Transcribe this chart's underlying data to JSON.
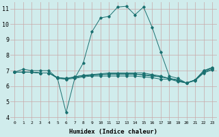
{
  "xlabel": "Humidex (Indice chaleur)",
  "xlim": [
    -0.5,
    23.5
  ],
  "ylim": [
    3.8,
    11.4
  ],
  "yticks": [
    4,
    5,
    6,
    7,
    8,
    9,
    10,
    11
  ],
  "xticks": [
    0,
    1,
    2,
    3,
    4,
    5,
    6,
    7,
    8,
    9,
    10,
    11,
    12,
    13,
    14,
    15,
    16,
    17,
    18,
    19,
    20,
    21,
    22,
    23
  ],
  "bg_color": "#d0ecec",
  "grid_color_v": "#c8a8a8",
  "grid_color_h": "#c8a8a8",
  "line_color": "#1a7070",
  "lines": [
    {
      "x": [
        0,
        1,
        2,
        3,
        4,
        5,
        6,
        7,
        8,
        9,
        10,
        11,
        12,
        13,
        14,
        15,
        16,
        17,
        18,
        19,
        20,
        21,
        22,
        23
      ],
      "y": [
        6.9,
        7.1,
        7.0,
        7.0,
        7.0,
        6.5,
        4.3,
        6.5,
        7.5,
        9.5,
        10.4,
        10.5,
        11.1,
        11.15,
        10.6,
        11.1,
        9.8,
        8.2,
        6.65,
        6.5,
        6.2,
        6.4,
        7.0,
        7.2
      ]
    },
    {
      "x": [
        0,
        1,
        2,
        3,
        4,
        5,
        6,
        7,
        8,
        9,
        10,
        11,
        12,
        13,
        14,
        15,
        16,
        17,
        18,
        19,
        20,
        21,
        22,
        23
      ],
      "y": [
        6.9,
        6.9,
        6.9,
        6.85,
        6.85,
        6.5,
        6.45,
        6.5,
        6.6,
        6.65,
        6.65,
        6.65,
        6.65,
        6.65,
        6.65,
        6.6,
        6.55,
        6.45,
        6.45,
        6.3,
        6.2,
        6.4,
        7.0,
        7.2
      ]
    },
    {
      "x": [
        0,
        1,
        2,
        3,
        4,
        5,
        6,
        7,
        8,
        9,
        10,
        11,
        12,
        13,
        14,
        15,
        16,
        17,
        18,
        19,
        20,
        21,
        22,
        23
      ],
      "y": [
        6.9,
        6.9,
        6.9,
        6.85,
        6.85,
        6.55,
        6.5,
        6.55,
        6.65,
        6.7,
        6.75,
        6.75,
        6.75,
        6.75,
        6.75,
        6.75,
        6.7,
        6.6,
        6.5,
        6.4,
        6.2,
        6.4,
        6.9,
        7.1
      ]
    },
    {
      "x": [
        0,
        1,
        2,
        3,
        4,
        5,
        6,
        7,
        8,
        9,
        10,
        11,
        12,
        13,
        14,
        15,
        16,
        17,
        18,
        19,
        20,
        21,
        22,
        23
      ],
      "y": [
        6.9,
        6.9,
        6.9,
        6.85,
        6.85,
        6.55,
        6.5,
        6.6,
        6.7,
        6.75,
        6.8,
        6.85,
        6.85,
        6.85,
        6.85,
        6.85,
        6.75,
        6.65,
        6.5,
        6.4,
        6.2,
        6.35,
        6.85,
        7.05
      ]
    },
    {
      "x": [
        0,
        1,
        2,
        3,
        4,
        5,
        6,
        7,
        8,
        9,
        10,
        11,
        12,
        13,
        14,
        15,
        16,
        17,
        18,
        19,
        20,
        21,
        22,
        23
      ],
      "y": [
        6.9,
        6.9,
        6.9,
        6.85,
        6.85,
        6.55,
        6.45,
        6.6,
        6.7,
        6.7,
        6.75,
        6.8,
        6.8,
        6.8,
        6.8,
        6.7,
        6.65,
        6.6,
        6.5,
        6.35,
        6.2,
        6.4,
        6.9,
        7.2
      ]
    }
  ]
}
